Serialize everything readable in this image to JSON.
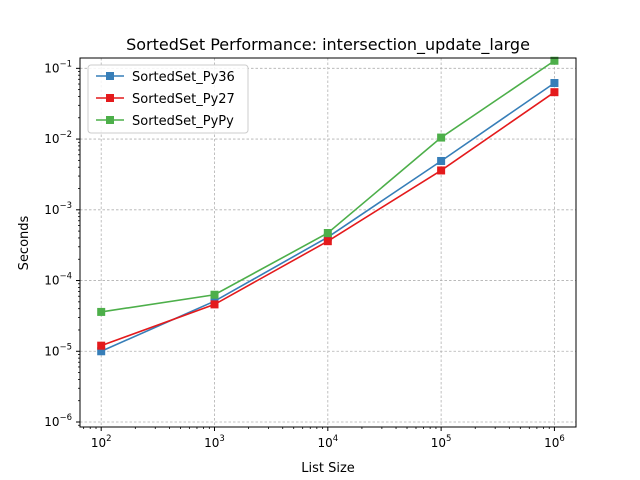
{
  "chart_data": {
    "type": "line",
    "title": "SortedSet Performance: intersection_update_large",
    "xlabel": "List Size",
    "ylabel": "Seconds",
    "xscale": "log",
    "yscale": "log",
    "xlim": [
      65,
      1550000
    ],
    "ylim": [
      8.5e-07,
      0.14
    ],
    "grid": true,
    "legend_position": "upper-left",
    "x": [
      100,
      1000,
      10000,
      100000,
      1000000
    ],
    "x_ticks": [
      {
        "value": 100,
        "base": "10",
        "exp": "2"
      },
      {
        "value": 1000,
        "base": "10",
        "exp": "3"
      },
      {
        "value": 10000,
        "base": "10",
        "exp": "4"
      },
      {
        "value": 100000,
        "base": "10",
        "exp": "5"
      },
      {
        "value": 1000000,
        "base": "10",
        "exp": "6"
      }
    ],
    "y_ticks": [
      {
        "value": 1e-06,
        "base": "10",
        "exp": "−6"
      },
      {
        "value": 1e-05,
        "base": "10",
        "exp": "−5"
      },
      {
        "value": 0.0001,
        "base": "10",
        "exp": "−4"
      },
      {
        "value": 0.001,
        "base": "10",
        "exp": "−3"
      },
      {
        "value": 0.01,
        "base": "10",
        "exp": "−2"
      },
      {
        "value": 0.1,
        "base": "10",
        "exp": "−1"
      }
    ],
    "series": [
      {
        "name": "SortedSet_Py36",
        "color": "#377eb8",
        "values": [
          1e-05,
          5.1e-05,
          0.00041,
          0.0049,
          0.062
        ]
      },
      {
        "name": "SortedSet_Py27",
        "color": "#e41a1c",
        "values": [
          1.2e-05,
          4.6e-05,
          0.00036,
          0.0036,
          0.046
        ]
      },
      {
        "name": "SortedSet_PyPy",
        "color": "#4daf4a",
        "values": [
          3.6e-05,
          6.3e-05,
          0.00047,
          0.0105,
          0.128
        ]
      }
    ]
  }
}
